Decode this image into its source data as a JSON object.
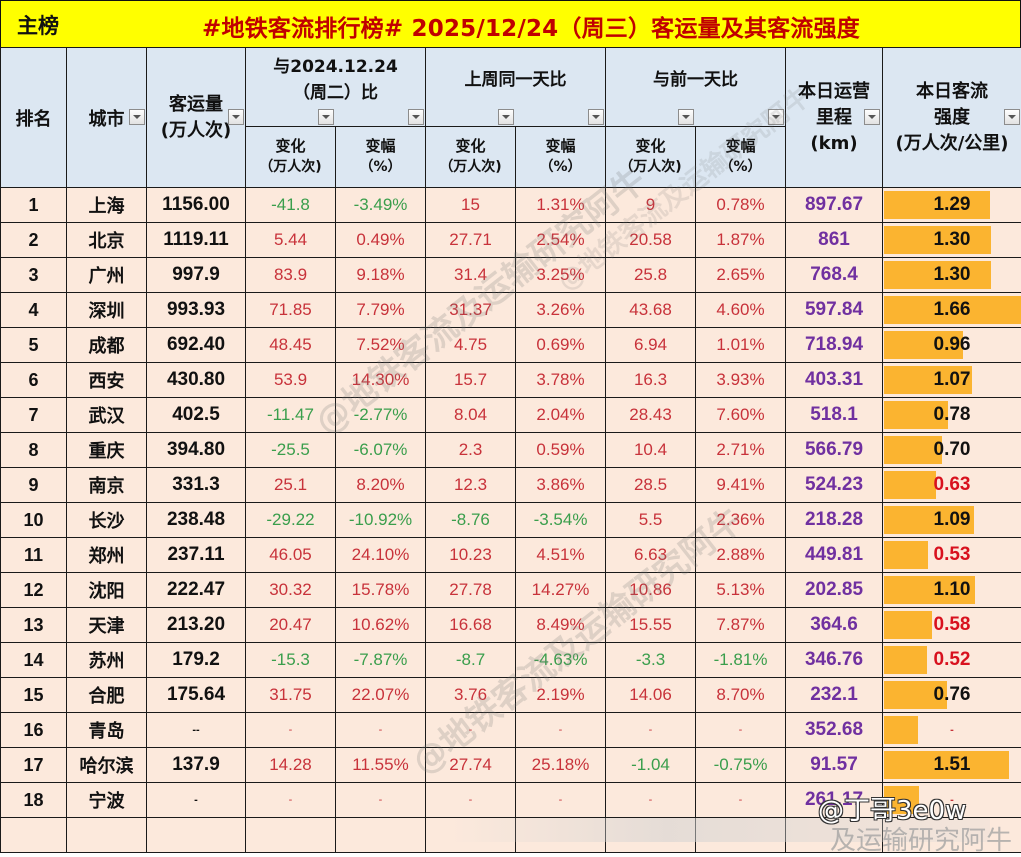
{
  "title_bar": {
    "label": "主榜",
    "title": "#地铁客流排行榜# 2025/12/24（周三）客运量及其客流强度"
  },
  "headers": {
    "rank": "排名",
    "city": "城市",
    "ridership": {
      "line1": "客运量",
      "line2": "(万人次)"
    },
    "groups": [
      {
        "label": "与2024.12.24（周二）比"
      },
      {
        "label": "上周同一天比"
      },
      {
        "label": "与前一天比"
      }
    ],
    "sub_change": {
      "line1": "变化",
      "line2": "（万人次)"
    },
    "sub_pct": {
      "line1": "变幅",
      "line2": "（%）"
    },
    "mileage": {
      "line1": "本日运营",
      "line2": "里程",
      "line3": "(km)"
    },
    "intensity": {
      "line1": "本日客流",
      "line2": "强度",
      "line3": "(万人次/公里)"
    }
  },
  "colors": {
    "title_bg": "#ffff00",
    "title_text": "#c00000",
    "header_bg": "#dce7f2",
    "cell_bg": "#fce9dc",
    "positive": "#c8323a",
    "negative": "#3a9e4c",
    "placeholder": "#c8323a",
    "mileage": "#7030a0",
    "intensity_normal": "#111111",
    "intensity_alert": "#d8111e",
    "bar": "#fbb430"
  },
  "intensity_alert_below": 0.7,
  "rows": [
    {
      "rank": "1",
      "city": "上海",
      "ridership": "1156.00",
      "yoy_change": "-41.8",
      "yoy_pct": "-3.49%",
      "wow_change": "15",
      "wow_pct": "1.31%",
      "dod_change": "9",
      "dod_pct": "0.78%",
      "mileage": "897.67",
      "intensity": "1.29",
      "bar": 1.29
    },
    {
      "rank": "2",
      "city": "北京",
      "ridership": "1119.11",
      "yoy_change": "5.44",
      "yoy_pct": "0.49%",
      "wow_change": "27.71",
      "wow_pct": "2.54%",
      "dod_change": "20.58",
      "dod_pct": "1.87%",
      "mileage": "861",
      "intensity": "1.30",
      "bar": 1.3
    },
    {
      "rank": "3",
      "city": "广州",
      "ridership": "997.9",
      "yoy_change": "83.9",
      "yoy_pct": "9.18%",
      "wow_change": "31.4",
      "wow_pct": "3.25%",
      "dod_change": "25.8",
      "dod_pct": "2.65%",
      "mileage": "768.4",
      "intensity": "1.30",
      "bar": 1.3
    },
    {
      "rank": "4",
      "city": "深圳",
      "ridership": "993.93",
      "yoy_change": "71.85",
      "yoy_pct": "7.79%",
      "wow_change": "31.37",
      "wow_pct": "3.26%",
      "dod_change": "43.68",
      "dod_pct": "4.60%",
      "mileage": "597.84",
      "intensity": "1.66",
      "bar": 1.66
    },
    {
      "rank": "5",
      "city": "成都",
      "ridership": "692.40",
      "yoy_change": "48.45",
      "yoy_pct": "7.52%",
      "wow_change": "4.75",
      "wow_pct": "0.69%",
      "dod_change": "6.94",
      "dod_pct": "1.01%",
      "mileage": "718.94",
      "intensity": "0.96",
      "bar": 0.96
    },
    {
      "rank": "6",
      "city": "西安",
      "ridership": "430.80",
      "yoy_change": "53.9",
      "yoy_pct": "14.30%",
      "wow_change": "15.7",
      "wow_pct": "3.78%",
      "dod_change": "16.3",
      "dod_pct": "3.93%",
      "mileage": "403.31",
      "intensity": "1.07",
      "bar": 1.07
    },
    {
      "rank": "7",
      "city": "武汉",
      "ridership": "402.5",
      "yoy_change": "-11.47",
      "yoy_pct": "-2.77%",
      "wow_change": "8.04",
      "wow_pct": "2.04%",
      "dod_change": "28.43",
      "dod_pct": "7.60%",
      "mileage": "518.1",
      "intensity": "0.78",
      "bar": 0.78
    },
    {
      "rank": "8",
      "city": "重庆",
      "ridership": "394.80",
      "yoy_change": "-25.5",
      "yoy_pct": "-6.07%",
      "wow_change": "2.3",
      "wow_pct": "0.59%",
      "dod_change": "10.4",
      "dod_pct": "2.71%",
      "mileage": "566.79",
      "intensity": "0.70",
      "bar": 0.7
    },
    {
      "rank": "9",
      "city": "南京",
      "ridership": "331.3",
      "yoy_change": "25.1",
      "yoy_pct": "8.20%",
      "wow_change": "12.3",
      "wow_pct": "3.86%",
      "dod_change": "28.5",
      "dod_pct": "9.41%",
      "mileage": "524.23",
      "intensity": "0.63",
      "bar": 0.63
    },
    {
      "rank": "10",
      "city": "长沙",
      "ridership": "238.48",
      "yoy_change": "-29.22",
      "yoy_pct": "-10.92%",
      "wow_change": "-8.76",
      "wow_pct": "-3.54%",
      "dod_change": "5.5",
      "dod_pct": "2.36%",
      "mileage": "218.28",
      "intensity": "1.09",
      "bar": 1.09
    },
    {
      "rank": "11",
      "city": "郑州",
      "ridership": "237.11",
      "yoy_change": "46.05",
      "yoy_pct": "24.10%",
      "wow_change": "10.23",
      "wow_pct": "4.51%",
      "dod_change": "6.63",
      "dod_pct": "2.88%",
      "mileage": "449.81",
      "intensity": "0.53",
      "bar": 0.53
    },
    {
      "rank": "12",
      "city": "沈阳",
      "ridership": "222.47",
      "yoy_change": "30.32",
      "yoy_pct": "15.78%",
      "wow_change": "27.78",
      "wow_pct": "14.27%",
      "dod_change": "10.86",
      "dod_pct": "5.13%",
      "mileage": "202.85",
      "intensity": "1.10",
      "bar": 1.1
    },
    {
      "rank": "13",
      "city": "天津",
      "ridership": "213.20",
      "yoy_change": "20.47",
      "yoy_pct": "10.62%",
      "wow_change": "16.68",
      "wow_pct": "8.49%",
      "dod_change": "15.55",
      "dod_pct": "7.87%",
      "mileage": "364.6",
      "intensity": "0.58",
      "bar": 0.58
    },
    {
      "rank": "14",
      "city": "苏州",
      "ridership": "179.2",
      "yoy_change": "-15.3",
      "yoy_pct": "-7.87%",
      "wow_change": "-8.7",
      "wow_pct": "-4.63%",
      "dod_change": "-3.3",
      "dod_pct": "-1.81%",
      "mileage": "346.76",
      "intensity": "0.52",
      "bar": 0.52
    },
    {
      "rank": "15",
      "city": "合肥",
      "ridership": "175.64",
      "yoy_change": "31.75",
      "yoy_pct": "22.07%",
      "wow_change": "3.76",
      "wow_pct": "2.19%",
      "dod_change": "14.06",
      "dod_pct": "8.70%",
      "mileage": "232.1",
      "intensity": "0.76",
      "bar": 0.76
    },
    {
      "rank": "16",
      "city": "青岛",
      "ridership": "--",
      "yoy_change": "-",
      "yoy_pct": "-",
      "wow_change": "-",
      "wow_pct": "-",
      "dod_change": "-",
      "dod_pct": "-",
      "mileage": "352.68",
      "intensity": "-",
      "bar": 0.41
    },
    {
      "rank": "17",
      "city": "哈尔滨",
      "ridership": "137.9",
      "yoy_change": "14.28",
      "yoy_pct": "11.55%",
      "wow_change": "27.74",
      "wow_pct": "25.18%",
      "dod_change": "-1.04",
      "dod_pct": "-0.75%",
      "mileage": "91.57",
      "intensity": "1.51",
      "bar": 1.51
    },
    {
      "rank": "18",
      "city": "宁波",
      "ridership": "-",
      "yoy_change": "-",
      "yoy_pct": "-",
      "wow_change": "-",
      "wow_pct": "-",
      "dod_change": "-",
      "dod_pct": "-",
      "mileage": "261.17",
      "intensity": "-",
      "bar": 0.43
    },
    {
      "rank": "",
      "city": "",
      "ridership": "",
      "yoy_change": "",
      "yoy_pct": "",
      "wow_change": "",
      "wow_pct": "",
      "dod_change": "",
      "dod_pct": "",
      "mileage": "",
      "intensity": "",
      "bar": 0
    }
  ],
  "watermarks": {
    "diagonal": "@地铁客流及运输研究阿牛",
    "credit": "@丁哥3e0w",
    "credit_sub": "及运输研究阿牛"
  }
}
